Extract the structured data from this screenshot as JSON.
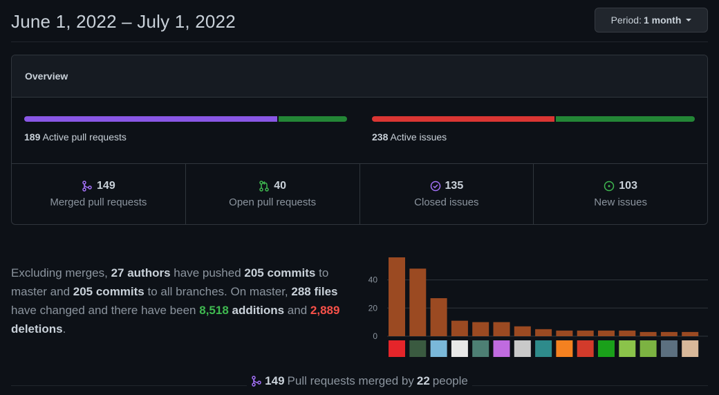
{
  "header": {
    "date_range": "June 1, 2022 – July 1, 2022",
    "period_prefix": "Period:",
    "period_value": "1 month"
  },
  "overview": {
    "title": "Overview",
    "pull_requests": {
      "count": "189",
      "label": "Active pull requests",
      "merged_fraction": 0.788,
      "open_fraction": 0.212,
      "colors": [
        "#8957e5",
        "#238636"
      ]
    },
    "issues": {
      "count": "238",
      "label": "Active issues",
      "closed_fraction": 0.567,
      "new_fraction": 0.433,
      "colors": [
        "#da3633",
        "#238636"
      ]
    },
    "stats": [
      {
        "icon": "merged-pr-icon",
        "value": "149",
        "label": "Merged pull requests",
        "color": "#a371f7"
      },
      {
        "icon": "open-pr-icon",
        "value": "40",
        "label": "Open pull requests",
        "color": "#3fb950"
      },
      {
        "icon": "closed-issue-icon",
        "value": "135",
        "label": "Closed issues",
        "color": "#a371f7"
      },
      {
        "icon": "new-issue-icon",
        "value": "103",
        "label": "New issues",
        "color": "#3fb950"
      }
    ]
  },
  "summary": {
    "p1": "Excluding merges, ",
    "authors": "27 authors",
    "p2": " have pushed ",
    "commits_master": "205 commits",
    "p3": " to master and ",
    "commits_all": "205 commits",
    "p4": " to all branches. On master, ",
    "files": "288 files",
    "p5": " have changed and there have been ",
    "additions_num": "8,518",
    "additions_word": "additions",
    "p6": " and ",
    "deletions_num": "2,889",
    "deletions_word": "deletions",
    "p7": "."
  },
  "chart_data": {
    "type": "bar",
    "values": [
      56,
      48,
      27,
      11,
      10,
      10,
      7,
      5,
      4,
      4,
      4,
      4,
      3,
      3,
      3
    ],
    "yticks": [
      0,
      20,
      40
    ],
    "ylim": [
      0,
      57
    ],
    "bar_color": "#9b4a22",
    "grid": true,
    "avatars": [
      "avatar-1",
      "avatar-2",
      "avatar-3",
      "avatar-4",
      "avatar-5",
      "avatar-6",
      "avatar-7",
      "avatar-8",
      "avatar-9",
      "avatar-10",
      "avatar-11",
      "avatar-12",
      "avatar-13",
      "avatar-14",
      "avatar-15"
    ]
  },
  "footer": {
    "icon": "merged-pr-icon",
    "count": "149",
    "mid": "Pull requests merged by",
    "people_count": "22",
    "end": "people"
  }
}
